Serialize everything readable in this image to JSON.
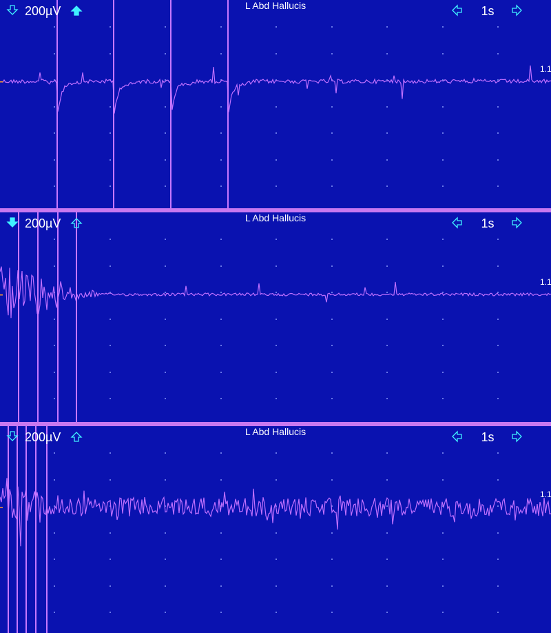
{
  "panels": [
    {
      "sensitivity": "200µV",
      "label": "L Abd Hallucis",
      "timebase": "1s",
      "marker": "1.1"
    },
    {
      "sensitivity": "200µV",
      "label": "L Abd Hallucis",
      "timebase": "1s",
      "marker": "1.1"
    },
    {
      "sensitivity": "200µV",
      "label": "L Abd Hallucis",
      "timebase": "1s",
      "marker": "1.1"
    }
  ]
}
